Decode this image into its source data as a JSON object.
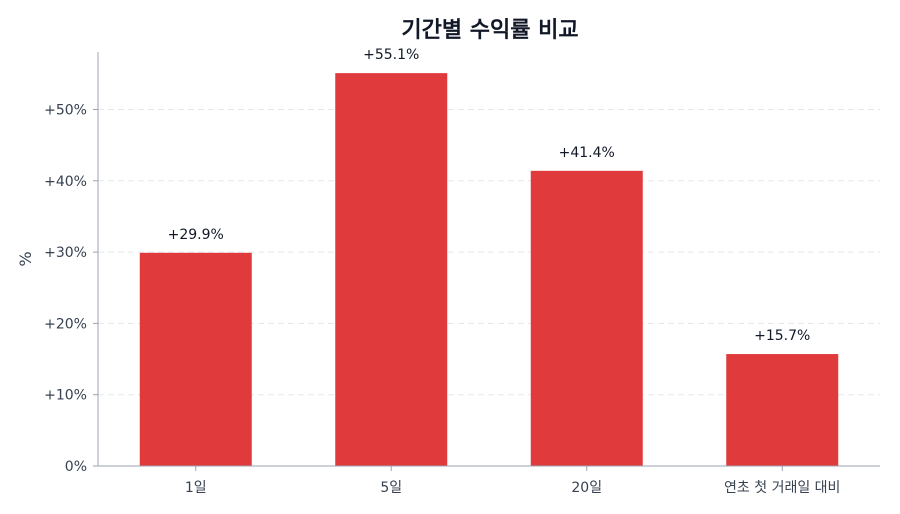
{
  "chart_data": {
    "type": "bar",
    "title": "기간별 수익률 비교",
    "xlabel": "",
    "ylabel": "%",
    "categories": [
      "1일",
      "5일",
      "20일",
      "연초 첫 거래일 대비"
    ],
    "values": [
      29.9,
      55.1,
      41.4,
      15.7
    ],
    "data_labels": [
      "+29.9%",
      "+55.1%",
      "+41.4%",
      "+15.7%"
    ],
    "ylim": [
      0,
      58
    ],
    "yticks": [
      0,
      10,
      20,
      30,
      40,
      50
    ],
    "ytick_labels": [
      "0%",
      "+10%",
      "+20%",
      "+30%",
      "+40%",
      "+50%"
    ],
    "grid": true,
    "legend": "none",
    "bar_color": "#e03a3c"
  }
}
